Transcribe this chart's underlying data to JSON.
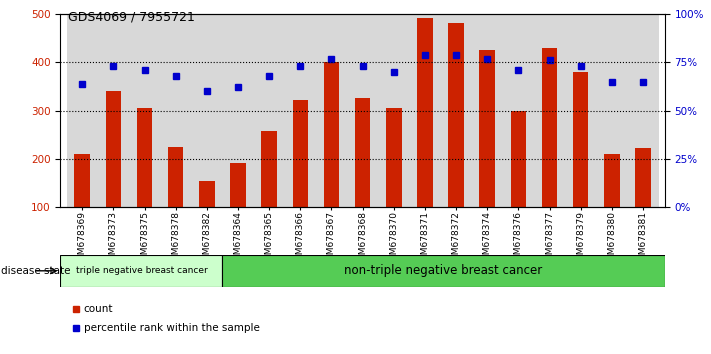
{
  "title": "GDS4069 / 7955721",
  "samples": [
    "GSM678369",
    "GSM678373",
    "GSM678375",
    "GSM678378",
    "GSM678382",
    "GSM678364",
    "GSM678365",
    "GSM678366",
    "GSM678367",
    "GSM678368",
    "GSM678370",
    "GSM678371",
    "GSM678372",
    "GSM678374",
    "GSM678376",
    "GSM678377",
    "GSM678379",
    "GSM678380",
    "GSM678381"
  ],
  "bar_values": [
    210,
    340,
    305,
    225,
    155,
    192,
    258,
    323,
    400,
    327,
    305,
    492,
    481,
    425,
    300,
    430,
    380,
    210,
    222
  ],
  "dot_values": [
    64,
    73,
    71,
    68,
    60,
    62,
    68,
    73,
    77,
    73,
    70,
    79,
    79,
    77,
    71,
    76,
    73,
    65,
    65
  ],
  "bar_color": "#cc2200",
  "dot_color": "#0000cc",
  "ylim_left": [
    100,
    500
  ],
  "ylim_right": [
    0,
    100
  ],
  "yticks_left": [
    100,
    200,
    300,
    400,
    500
  ],
  "yticks_right": [
    0,
    25,
    50,
    75,
    100
  ],
  "ytick_labels_right": [
    "0%",
    "25%",
    "50%",
    "75%",
    "100%"
  ],
  "group1_label": "triple negative breast cancer",
  "group2_label": "non-triple negative breast cancer",
  "group1_count": 5,
  "group2_count": 14,
  "disease_state_label": "disease state",
  "legend_count_label": "count",
  "legend_pct_label": "percentile rank within the sample",
  "col_bg_color": "#d8d8d8",
  "group1_color": "#ccffcc",
  "group2_color": "#55cc55",
  "grid_color": "#000000"
}
